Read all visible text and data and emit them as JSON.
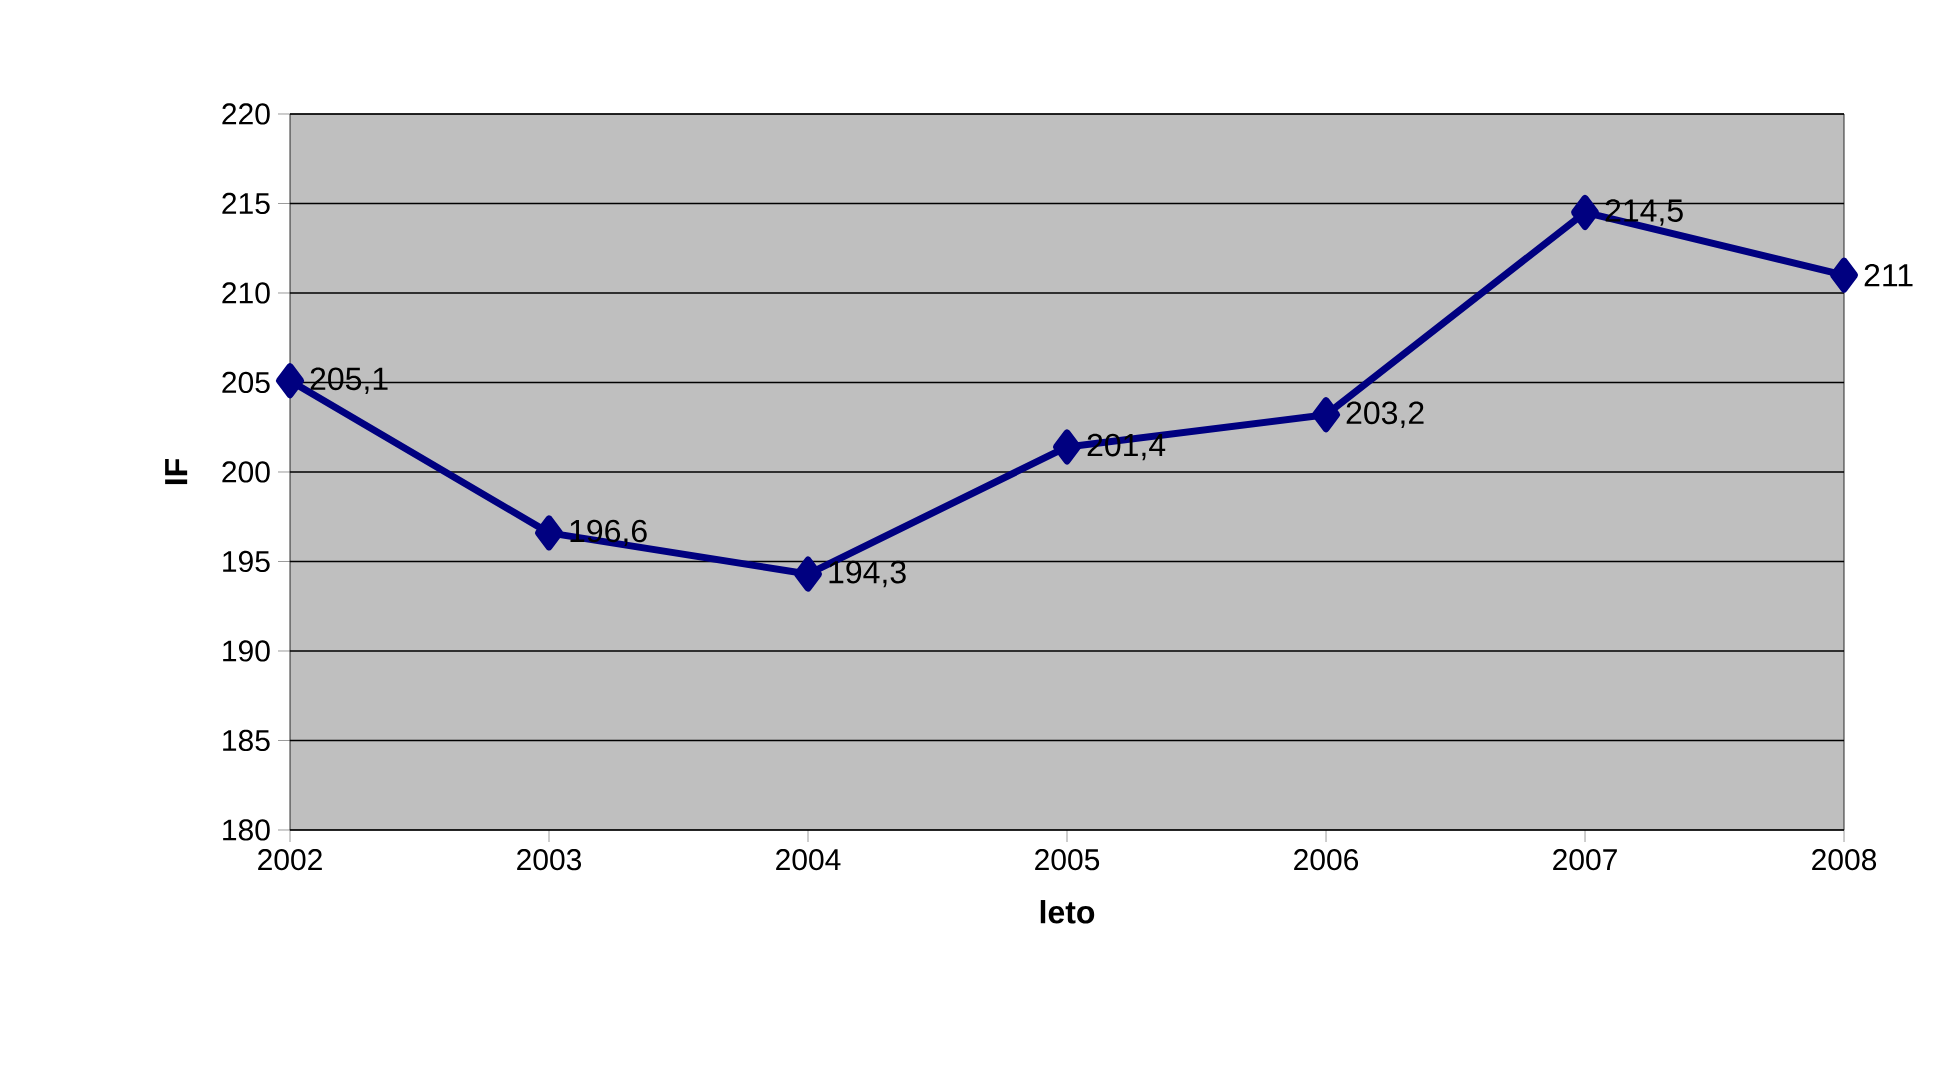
{
  "chart_data": {
    "type": "line",
    "xlabel": "leto",
    "ylabel": "IF",
    "categories": [
      "2002",
      "2003",
      "2004",
      "2005",
      "2006",
      "2007",
      "2008"
    ],
    "series": [
      {
        "color": "#000080",
        "values": [
          205.1,
          196.6,
          194.3,
          201.4,
          203.2,
          214.5,
          211
        ],
        "value_labels": [
          "205,1",
          "196,6",
          "194,3",
          "201,4",
          "203,2",
          "214,5",
          "211"
        ]
      }
    ],
    "ylim": [
      180,
      220
    ],
    "yticks": [
      180,
      185,
      190,
      195,
      200,
      205,
      210,
      215,
      220
    ],
    "grid": "y",
    "marker": "diamond",
    "line_style": "solid"
  }
}
